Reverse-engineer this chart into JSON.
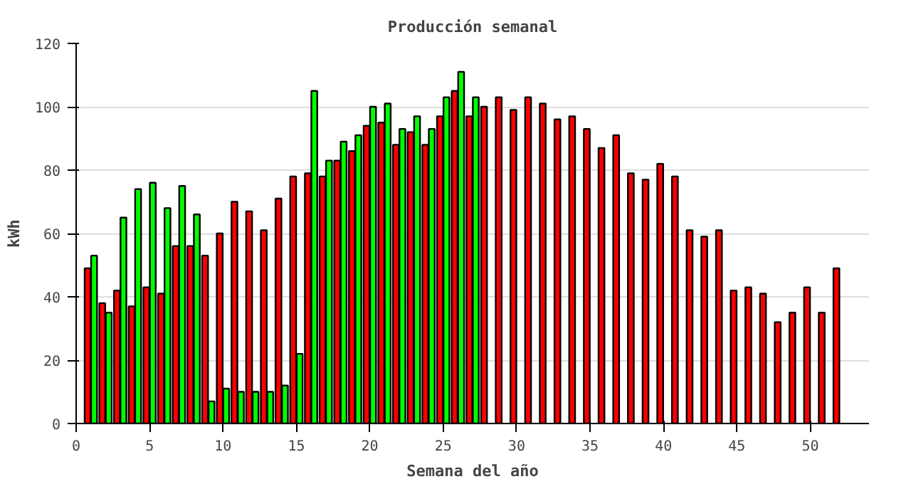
{
  "chart_data": {
    "type": "bar",
    "title": "Producción semanal",
    "xlabel": "Semana del año",
    "ylabel": "kWh",
    "xlim": [
      0,
      54
    ],
    "xticks": [
      0,
      5,
      10,
      15,
      20,
      25,
      30,
      35,
      40,
      45,
      50
    ],
    "ylim": [
      0,
      120
    ],
    "yticks": [
      0,
      20,
      40,
      60,
      80,
      100,
      120
    ],
    "grid": "y",
    "series": [
      {
        "color": "#ff0000",
        "x": [
          1,
          2,
          3,
          4,
          5,
          6,
          7,
          8,
          9,
          10,
          11,
          12,
          13,
          14,
          15,
          16,
          17,
          18,
          19,
          20,
          21,
          22,
          23,
          24,
          25,
          26,
          27,
          28,
          29,
          30,
          31,
          32,
          33,
          34,
          35,
          36,
          37,
          38,
          39,
          40,
          41,
          42,
          43,
          44,
          45,
          46,
          47,
          48,
          49,
          50,
          51,
          52
        ],
        "values": [
          49,
          38,
          42,
          37,
          43,
          41,
          56,
          56,
          53,
          60,
          70,
          67,
          61,
          71,
          78,
          79,
          78,
          83,
          86,
          94,
          95,
          88,
          92,
          88,
          97,
          105,
          97,
          100,
          103,
          99,
          103,
          101,
          96,
          97,
          93,
          87,
          91,
          79,
          77,
          82,
          78,
          61,
          59,
          61,
          42,
          43,
          41,
          32,
          35,
          43,
          35,
          49
        ]
      },
      {
        "color": "#00ff00",
        "x": [
          1,
          2,
          3,
          4,
          5,
          6,
          7,
          8,
          9,
          10,
          11,
          12,
          13,
          14,
          15,
          16,
          17,
          18,
          19,
          20,
          21,
          22,
          23,
          24,
          25,
          26,
          27
        ],
        "values": [
          53,
          35,
          65,
          74,
          76,
          68,
          75,
          66,
          7,
          11,
          10,
          10,
          10,
          12,
          22,
          105,
          83,
          89,
          91,
          100,
          101,
          93,
          97,
          93,
          103,
          111,
          103
        ]
      }
    ]
  }
}
